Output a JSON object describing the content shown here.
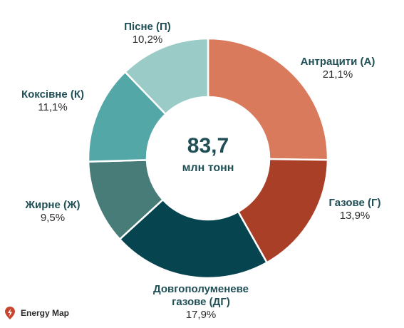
{
  "chart_data": {
    "type": "pie",
    "center": {
      "total": "83,7",
      "unit": "млн тонн"
    },
    "slices": [
      {
        "label": "Антрацити (А)",
        "value_label": "21,1%",
        "value": 21.1,
        "color": "#d97a5c"
      },
      {
        "label": "Газове (Г)",
        "value_label": "13,9%",
        "value": 13.9,
        "color": "#aa3f28"
      },
      {
        "label": "Довгополуменеве газове (ДГ)",
        "label_lines": [
          "Довгополуменеве",
          "газове (ДГ)"
        ],
        "value_label": "17,9%",
        "value": 17.9,
        "color": "#06454f"
      },
      {
        "label": "Жирне (Ж)",
        "value_label": "9,5%",
        "value": 9.5,
        "color": "#477c78"
      },
      {
        "label": "Коксівне (К)",
        "value_label": "11,1%",
        "value": 11.1,
        "color": "#53a8a7"
      },
      {
        "label": "Пісне (П)",
        "value_label": "10,2%",
        "value": 10.2,
        "color": "#9bcbc6"
      }
    ]
  },
  "brand": {
    "name": "Energy Map",
    "icon": "lightning-bolt-icon",
    "color": "#c8452f"
  }
}
